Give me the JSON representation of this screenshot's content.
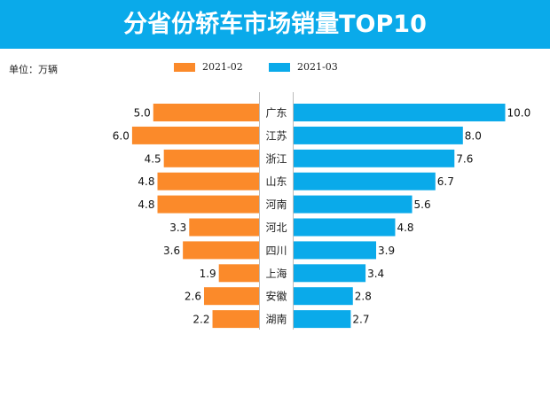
{
  "title": "分省份轿车市场销量TOP10",
  "unit_label": "单位：万辆",
  "colors": {
    "title_bg": "#0aaaea",
    "series_left": "#fb8a2a",
    "series_right": "#0aaaea"
  },
  "chart_data": {
    "type": "bar",
    "orientation": "horizontal-butterfly",
    "categories": [
      "广东",
      "江苏",
      "浙江",
      "山东",
      "河南",
      "河北",
      "四川",
      "上海",
      "安徽",
      "湖南"
    ],
    "series": [
      {
        "name": "2021-02",
        "values": [
          5.0,
          6.0,
          4.5,
          4.8,
          4.8,
          3.3,
          3.6,
          1.9,
          2.6,
          2.2
        ],
        "side": "left"
      },
      {
        "name": "2021-03",
        "values": [
          10.0,
          8.0,
          7.6,
          6.7,
          5.6,
          4.8,
          3.9,
          3.4,
          2.8,
          2.7
        ],
        "side": "right"
      }
    ],
    "legend_position": "top",
    "grid": false
  }
}
